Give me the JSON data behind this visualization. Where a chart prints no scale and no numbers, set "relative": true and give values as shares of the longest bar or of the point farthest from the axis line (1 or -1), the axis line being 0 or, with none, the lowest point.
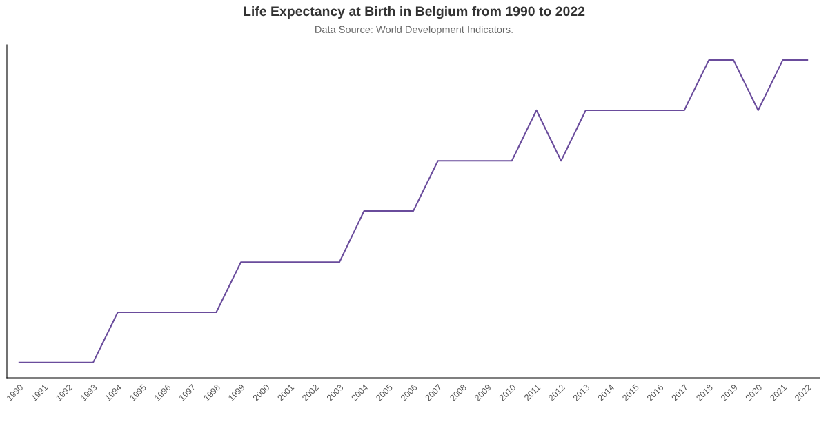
{
  "chart_data": {
    "type": "line",
    "title": "Life Expectancy at Birth in Belgium from 1990 to 2022",
    "subtitle": "Data Source: World Development Indicators.",
    "relative": true,
    "categories": [
      "1990",
      "1991",
      "1992",
      "1993",
      "1994",
      "1995",
      "1996",
      "1997",
      "1998",
      "1999",
      "2000",
      "2001",
      "2002",
      "2003",
      "2004",
      "2005",
      "2006",
      "2007",
      "2008",
      "2009",
      "2010",
      "2011",
      "2012",
      "2013",
      "2014",
      "2015",
      "2016",
      "2017",
      "2018",
      "2019",
      "2020",
      "2021",
      "2022"
    ],
    "series": [
      {
        "color": "#6a4c9c",
        "values": [
          0.048,
          0.048,
          0.048,
          0.048,
          0.206,
          0.206,
          0.206,
          0.206,
          0.206,
          0.364,
          0.364,
          0.364,
          0.364,
          0.364,
          0.525,
          0.525,
          0.525,
          0.683,
          0.683,
          0.683,
          0.683,
          0.842,
          0.683,
          0.842,
          0.842,
          0.842,
          0.842,
          0.842,
          1,
          1,
          0.842,
          1,
          1
        ]
      }
    ],
    "grid": false,
    "legend": false,
    "marker": "none",
    "line_style": "solid"
  }
}
